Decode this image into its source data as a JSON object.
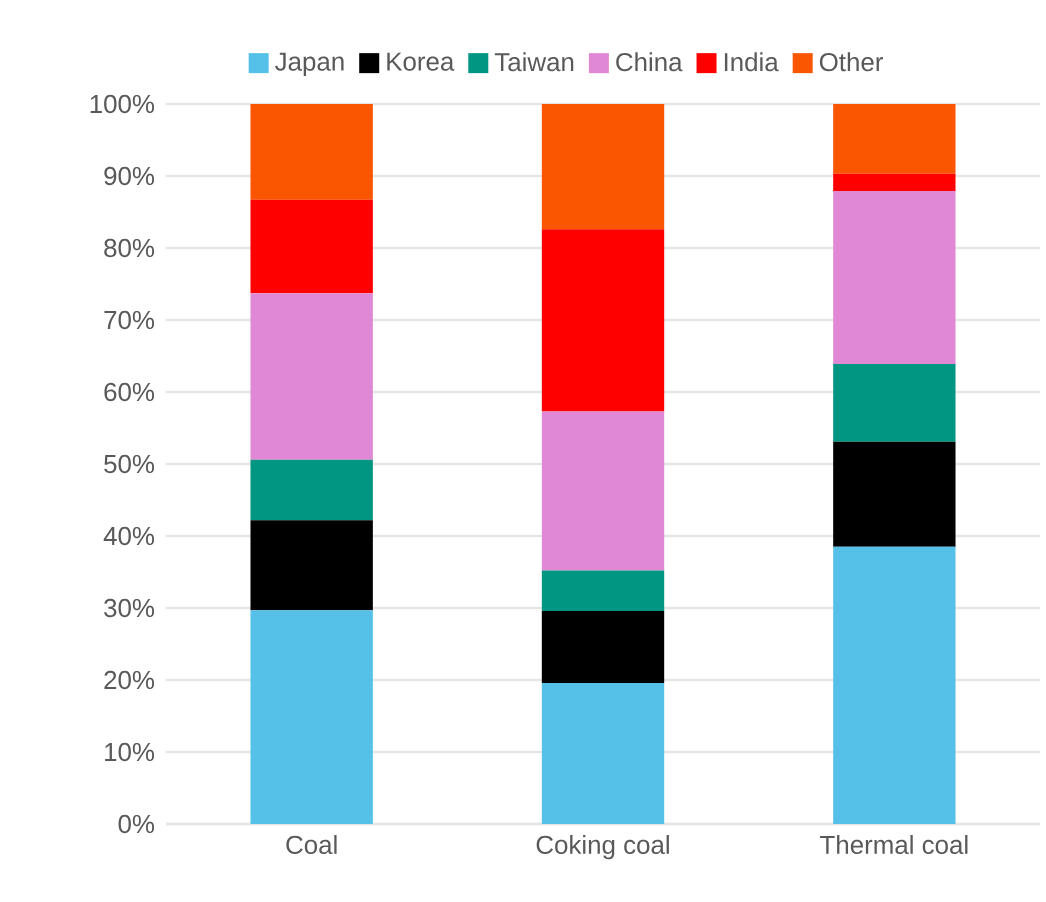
{
  "chart_data": {
    "type": "bar",
    "stacked": true,
    "categories": [
      "Coal",
      "Coking coal",
      "Thermal coal"
    ],
    "series": [
      {
        "name": "Japan",
        "color": "#55c0e8",
        "values": [
          29.7,
          19.6,
          38.5
        ]
      },
      {
        "name": "Korea",
        "color": "#000000",
        "values": [
          12.5,
          10,
          14.6
        ]
      },
      {
        "name": "Taiwan",
        "color": "#009682",
        "values": [
          8.4,
          5.6,
          10.8
        ]
      },
      {
        "name": "China",
        "color": "#e088d6",
        "values": [
          23.1,
          22.1,
          24
        ]
      },
      {
        "name": "India",
        "color": "#ff0000",
        "values": [
          13,
          25.3,
          2.4
        ]
      },
      {
        "name": "Other",
        "color": "#fa5500",
        "values": [
          13.3,
          17.4,
          9.7
        ]
      }
    ],
    "ylim": [
      0,
      100
    ],
    "yticks": [
      {
        "value": 0,
        "label": "0%"
      },
      {
        "value": 10,
        "label": "10%"
      },
      {
        "value": 20,
        "label": "20%"
      },
      {
        "value": 30,
        "label": "30%"
      },
      {
        "value": 40,
        "label": "40%"
      },
      {
        "value": 50,
        "label": "50%"
      },
      {
        "value": 60,
        "label": "60%"
      },
      {
        "value": 70,
        "label": "70%"
      },
      {
        "value": 80,
        "label": "80%"
      },
      {
        "value": 90,
        "label": "90%"
      },
      {
        "value": 100,
        "label": "100%"
      }
    ],
    "grid": "y",
    "legend": "top"
  }
}
